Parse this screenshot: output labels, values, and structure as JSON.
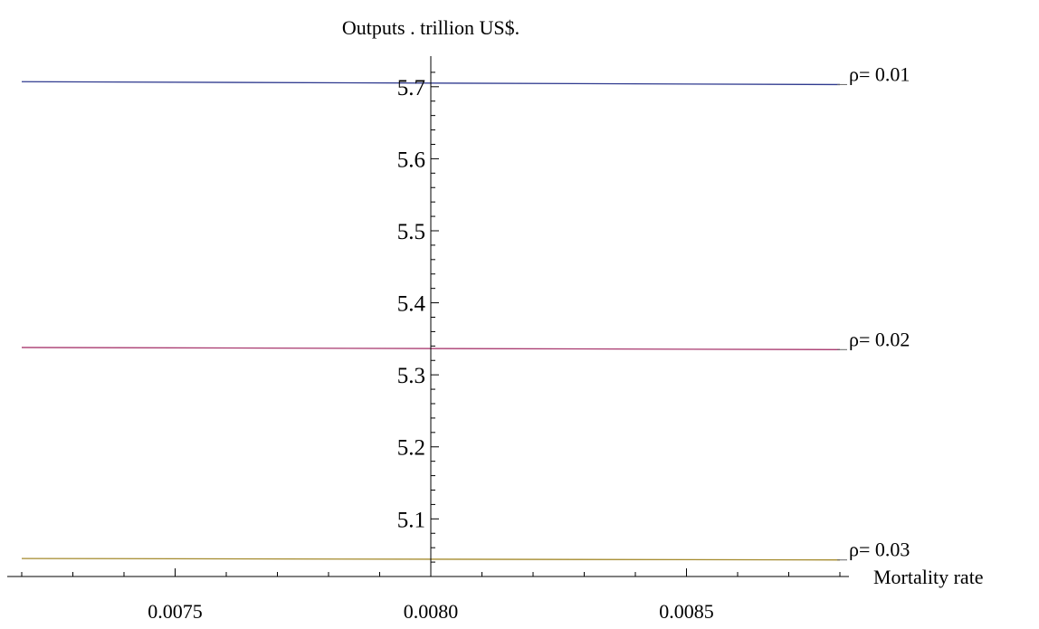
{
  "chart_data": {
    "type": "line",
    "ylabel": "Outputs . trillion US$.",
    "xlabel": "Mortality rate",
    "xlim": [
      0.0072,
      0.0088
    ],
    "ylim": [
      5.02,
      5.745
    ],
    "axis_origin": {
      "x": 0.008,
      "y": 5.02
    },
    "x_major_ticks": [
      0.0075,
      0.008,
      0.0085
    ],
    "x_tick_labels": [
      "0.0075",
      "0.0080",
      "0.0085"
    ],
    "x_minor_step": 0.0001,
    "y_major_ticks": [
      5.1,
      5.2,
      5.3,
      5.4,
      5.5,
      5.6,
      5.7
    ],
    "y_tick_labels": [
      "5.1",
      "5.2",
      "5.3",
      "5.4",
      "5.5",
      "5.6",
      "5.7"
    ],
    "y_minor_step": 0.02,
    "grid": false,
    "legend": "inline labels at right end of lines",
    "series": [
      {
        "name": "ρ= 0.01",
        "color": "#2f3a8f",
        "x": [
          0.0072,
          0.0088
        ],
        "y": [
          5.707,
          5.703
        ]
      },
      {
        "name": "ρ= 0.02",
        "color": "#a8386e",
        "x": [
          0.0072,
          0.0088
        ],
        "y": [
          5.338,
          5.335
        ]
      },
      {
        "name": "ρ= 0.03",
        "color": "#a48a2c",
        "x": [
          0.0072,
          0.0088
        ],
        "y": [
          5.045,
          5.043
        ]
      }
    ]
  }
}
